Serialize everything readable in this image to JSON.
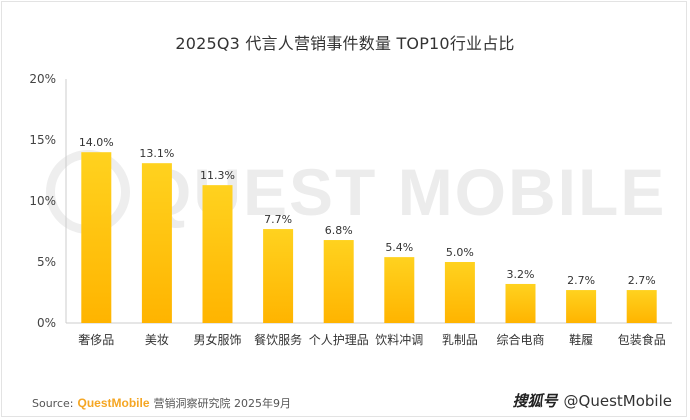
{
  "chart_data": {
    "type": "bar",
    "title": "2025Q3 代言人营销事件数量 TOP10行业占比",
    "categories": [
      "奢侈品",
      "美妆",
      "男女服饰",
      "餐饮服务",
      "个人护理品",
      "饮料冲调",
      "乳制品",
      "综合电商",
      "鞋履",
      "包装食品"
    ],
    "values": [
      14.0,
      13.1,
      11.3,
      7.7,
      6.8,
      5.4,
      5.0,
      3.2,
      2.7,
      2.7
    ],
    "value_labels": [
      "14.0%",
      "13.1%",
      "11.3%",
      "7.7%",
      "6.8%",
      "5.4%",
      "5.0%",
      "3.2%",
      "2.7%",
      "2.7%"
    ],
    "ylim": [
      0,
      20
    ],
    "yticks": [
      0,
      5,
      10,
      15,
      20
    ],
    "ytick_labels": [
      "0%",
      "5%",
      "10%",
      "15%",
      "20%"
    ],
    "grid": false,
    "colors": {
      "bar_top": "#ffd21f",
      "bar_bottom": "#ffb400",
      "axis": "#cccccc"
    }
  },
  "watermark": {
    "text": "QUEST MOBILE"
  },
  "source": {
    "label": "Source:",
    "brand": "QuestMobile",
    "text": "营销洞察研究院 2025年9月"
  },
  "credit": {
    "platform": "搜狐号",
    "handle": "@QuestMobile"
  }
}
